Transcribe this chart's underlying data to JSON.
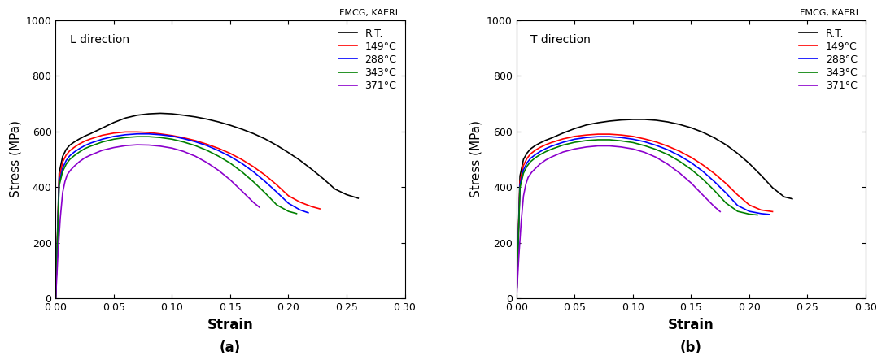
{
  "fig_width": 10.89,
  "fig_height": 4.48,
  "dpi": 100,
  "background_color": "#ffffff",
  "watermark": "FMCG, KAERI",
  "xlabel": "Strain",
  "ylabel": "Stress (MPa)",
  "xlim": [
    0.0,
    0.3
  ],
  "ylim": [
    0,
    1000
  ],
  "xticks": [
    0.0,
    0.05,
    0.1,
    0.15,
    0.2,
    0.25,
    0.3
  ],
  "yticks": [
    0,
    200,
    400,
    600,
    800,
    1000
  ],
  "legend_labels": [
    "R.T.",
    "149°C",
    "288°C",
    "343°C",
    "371°C"
  ],
  "colors": [
    "#000000",
    "#ff0000",
    "#0000ff",
    "#008000",
    "#8b00cc"
  ],
  "plot_a_label": "L direction",
  "plot_b_label": "T direction",
  "subfig_labels": [
    "(a)",
    "(b)"
  ],
  "curves_L": {
    "RT": {
      "strain": [
        0.0,
        0.003,
        0.006,
        0.009,
        0.012,
        0.016,
        0.02,
        0.025,
        0.03,
        0.04,
        0.05,
        0.06,
        0.07,
        0.08,
        0.09,
        0.1,
        0.11,
        0.12,
        0.13,
        0.14,
        0.15,
        0.16,
        0.17,
        0.18,
        0.19,
        0.2,
        0.21,
        0.22,
        0.23,
        0.24,
        0.25,
        0.26
      ],
      "stress": [
        0,
        450,
        510,
        535,
        550,
        562,
        572,
        583,
        592,
        612,
        632,
        648,
        658,
        663,
        665,
        663,
        658,
        652,
        644,
        634,
        622,
        608,
        592,
        573,
        550,
        524,
        496,
        464,
        430,
        393,
        373,
        360
      ]
    },
    "149": {
      "strain": [
        0.0,
        0.003,
        0.006,
        0.009,
        0.012,
        0.016,
        0.02,
        0.025,
        0.03,
        0.04,
        0.05,
        0.06,
        0.07,
        0.08,
        0.09,
        0.1,
        0.11,
        0.12,
        0.13,
        0.14,
        0.15,
        0.16,
        0.17,
        0.18,
        0.19,
        0.2,
        0.21,
        0.22,
        0.227
      ],
      "stress": [
        0,
        430,
        490,
        515,
        530,
        543,
        554,
        565,
        573,
        586,
        594,
        598,
        598,
        596,
        591,
        585,
        577,
        567,
        554,
        539,
        521,
        499,
        473,
        443,
        408,
        369,
        346,
        330,
        322
      ]
    },
    "288": {
      "strain": [
        0.0,
        0.003,
        0.006,
        0.009,
        0.012,
        0.016,
        0.02,
        0.025,
        0.03,
        0.04,
        0.05,
        0.06,
        0.07,
        0.08,
        0.09,
        0.1,
        0.11,
        0.12,
        0.13,
        0.14,
        0.15,
        0.16,
        0.17,
        0.18,
        0.19,
        0.2,
        0.21,
        0.217
      ],
      "stress": [
        0,
        415,
        468,
        495,
        512,
        526,
        537,
        549,
        558,
        572,
        582,
        588,
        591,
        591,
        588,
        583,
        574,
        563,
        549,
        531,
        510,
        485,
        455,
        420,
        382,
        342,
        318,
        308
      ]
    },
    "343": {
      "strain": [
        0.0,
        0.003,
        0.006,
        0.009,
        0.012,
        0.016,
        0.02,
        0.025,
        0.03,
        0.04,
        0.05,
        0.06,
        0.07,
        0.08,
        0.09,
        0.1,
        0.11,
        0.12,
        0.13,
        0.14,
        0.15,
        0.16,
        0.17,
        0.18,
        0.19,
        0.2,
        0.207
      ],
      "stress": [
        0,
        405,
        456,
        482,
        499,
        513,
        525,
        538,
        547,
        562,
        572,
        578,
        581,
        581,
        578,
        572,
        562,
        549,
        532,
        511,
        486,
        455,
        419,
        379,
        336,
        313,
        305
      ]
    },
    "371": {
      "strain": [
        0.0,
        0.002,
        0.004,
        0.006,
        0.008,
        0.01,
        0.013,
        0.016,
        0.02,
        0.025,
        0.03,
        0.04,
        0.05,
        0.06,
        0.07,
        0.08,
        0.09,
        0.1,
        0.11,
        0.12,
        0.13,
        0.14,
        0.15,
        0.16,
        0.17,
        0.175
      ],
      "stress": [
        0,
        160,
        290,
        380,
        420,
        445,
        462,
        475,
        490,
        505,
        515,
        532,
        542,
        549,
        552,
        551,
        547,
        540,
        528,
        511,
        488,
        460,
        426,
        386,
        345,
        328
      ]
    }
  },
  "curves_T": {
    "RT": {
      "strain": [
        0.0,
        0.003,
        0.006,
        0.009,
        0.012,
        0.016,
        0.02,
        0.025,
        0.03,
        0.04,
        0.05,
        0.06,
        0.07,
        0.08,
        0.09,
        0.1,
        0.11,
        0.12,
        0.13,
        0.14,
        0.15,
        0.16,
        0.17,
        0.18,
        0.19,
        0.2,
        0.21,
        0.22,
        0.23,
        0.237
      ],
      "stress": [
        0,
        440,
        500,
        522,
        537,
        549,
        558,
        568,
        576,
        594,
        610,
        623,
        631,
        637,
        641,
        643,
        643,
        640,
        634,
        625,
        613,
        597,
        577,
        552,
        521,
        485,
        443,
        398,
        365,
        358
      ]
    },
    "149": {
      "strain": [
        0.0,
        0.003,
        0.006,
        0.009,
        0.012,
        0.016,
        0.02,
        0.025,
        0.03,
        0.04,
        0.05,
        0.06,
        0.07,
        0.08,
        0.09,
        0.1,
        0.11,
        0.12,
        0.13,
        0.14,
        0.15,
        0.16,
        0.17,
        0.18,
        0.19,
        0.2,
        0.21,
        0.22
      ],
      "stress": [
        0,
        420,
        478,
        503,
        519,
        532,
        542,
        552,
        560,
        573,
        582,
        587,
        590,
        590,
        587,
        582,
        573,
        562,
        547,
        529,
        507,
        480,
        449,
        413,
        372,
        336,
        318,
        312
      ]
    },
    "288": {
      "strain": [
        0.0,
        0.003,
        0.006,
        0.009,
        0.012,
        0.016,
        0.02,
        0.025,
        0.03,
        0.04,
        0.05,
        0.06,
        0.07,
        0.08,
        0.09,
        0.1,
        0.11,
        0.12,
        0.13,
        0.14,
        0.15,
        0.16,
        0.17,
        0.18,
        0.19,
        0.2,
        0.21,
        0.217
      ],
      "stress": [
        0,
        408,
        462,
        487,
        503,
        516,
        527,
        538,
        547,
        561,
        572,
        578,
        581,
        581,
        578,
        572,
        563,
        550,
        534,
        513,
        488,
        457,
        420,
        379,
        334,
        313,
        305,
        302
      ]
    },
    "343": {
      "strain": [
        0.0,
        0.003,
        0.006,
        0.009,
        0.012,
        0.016,
        0.02,
        0.025,
        0.03,
        0.04,
        0.05,
        0.06,
        0.07,
        0.08,
        0.09,
        0.1,
        0.11,
        0.12,
        0.13,
        0.14,
        0.15,
        0.16,
        0.17,
        0.18,
        0.19,
        0.2,
        0.207
      ],
      "stress": [
        0,
        398,
        450,
        475,
        491,
        505,
        516,
        527,
        536,
        551,
        561,
        567,
        570,
        570,
        566,
        560,
        549,
        535,
        517,
        493,
        464,
        429,
        388,
        343,
        313,
        303,
        300
      ]
    },
    "371": {
      "strain": [
        0.0,
        0.002,
        0.004,
        0.006,
        0.008,
        0.01,
        0.013,
        0.016,
        0.02,
        0.025,
        0.03,
        0.04,
        0.05,
        0.06,
        0.07,
        0.08,
        0.09,
        0.1,
        0.11,
        0.12,
        0.13,
        0.14,
        0.15,
        0.16,
        0.17,
        0.175
      ],
      "stress": [
        0,
        150,
        275,
        368,
        410,
        435,
        453,
        466,
        482,
        497,
        508,
        526,
        537,
        544,
        548,
        548,
        544,
        537,
        525,
        507,
        482,
        451,
        415,
        372,
        330,
        312
      ]
    }
  }
}
